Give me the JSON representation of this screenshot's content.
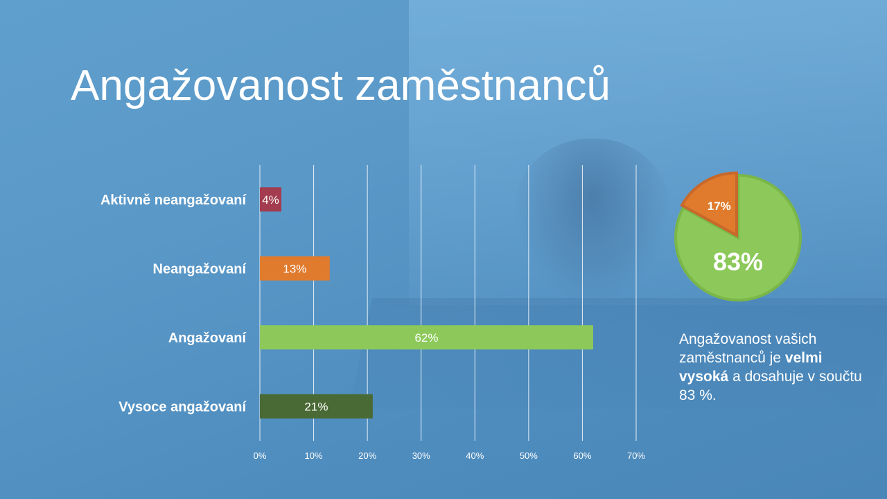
{
  "title": "Angažovanost zaměstnanců",
  "colors": {
    "aktivne_neangazovani": "#a33c4e",
    "neangazovani": "#e07b2e",
    "angazovani": "#8cc95a",
    "vysoce_angazovani": "#4a6a35",
    "gridline": "#ffffff",
    "pie_major": "#8cc95a",
    "pie_minor": "#e07b2e"
  },
  "chart_data": [
    {
      "type": "bar",
      "orientation": "horizontal",
      "categories": [
        "Aktivně neangažovaní",
        "Neangažovaní",
        "Angažovaní",
        "Vysoce angažovaní"
      ],
      "values": [
        4,
        13,
        62,
        21
      ],
      "data_labels": [
        "4%",
        "13%",
        "62%",
        "21%"
      ],
      "xlim": [
        0,
        70
      ],
      "x_ticks": [
        "0%",
        "10%",
        "20%",
        "30%",
        "40%",
        "50%",
        "60%",
        "70%"
      ],
      "grid": "vertical",
      "legend": "none"
    },
    {
      "type": "pie",
      "slices": [
        {
          "label": "83%",
          "value": 83
        },
        {
          "label": "17%",
          "value": 17
        }
      ]
    }
  ],
  "summary": {
    "part1": "Angažovanost vašich zaměstnanců je ",
    "bold": "velmi vysoká",
    "part2": " a dosahuje v součtu 83 %."
  }
}
